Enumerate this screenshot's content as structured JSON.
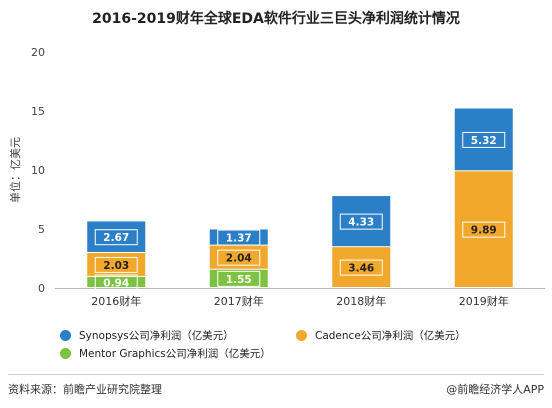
{
  "chart_data": {
    "type": "bar",
    "stacked": true,
    "title": "2016-2019财年全球EDA软件行业三巨头净利润统计情况",
    "ylabel": "单位：亿美元",
    "xlabel": "",
    "ylim": [
      0,
      20
    ],
    "yticks": [
      0,
      5,
      10,
      15,
      20
    ],
    "grid": false,
    "legend_position": "bottom",
    "categories": [
      "2016财年",
      "2017财年",
      "2018财年",
      "2019财年"
    ],
    "series": [
      {
        "name": "Mentor Graphics公司净利润（亿美元）",
        "color": "#7dc242",
        "values": [
          0.94,
          1.55,
          null,
          null
        ],
        "labels": [
          "0.94",
          "1.55",
          "",
          ""
        ]
      },
      {
        "name": "Cadence公司净利润（亿美元）",
        "color": "#f2a82c",
        "values": [
          2.03,
          2.04,
          3.46,
          9.89
        ],
        "labels": [
          "2.03",
          "2.04",
          "3.46",
          "9.89"
        ]
      },
      {
        "name": "Synopsys公司净利润（亿美元）",
        "color": "#2a7fc6",
        "values": [
          2.67,
          1.37,
          4.33,
          5.32
        ],
        "labels": [
          "2.67",
          "1.37",
          "4.33",
          "5.32"
        ]
      }
    ],
    "legend_order": [
      2,
      1,
      0
    ]
  },
  "footer": {
    "source": "资料来源：前瞻产业研究院整理",
    "brand": "@前瞻经济学人APP"
  }
}
